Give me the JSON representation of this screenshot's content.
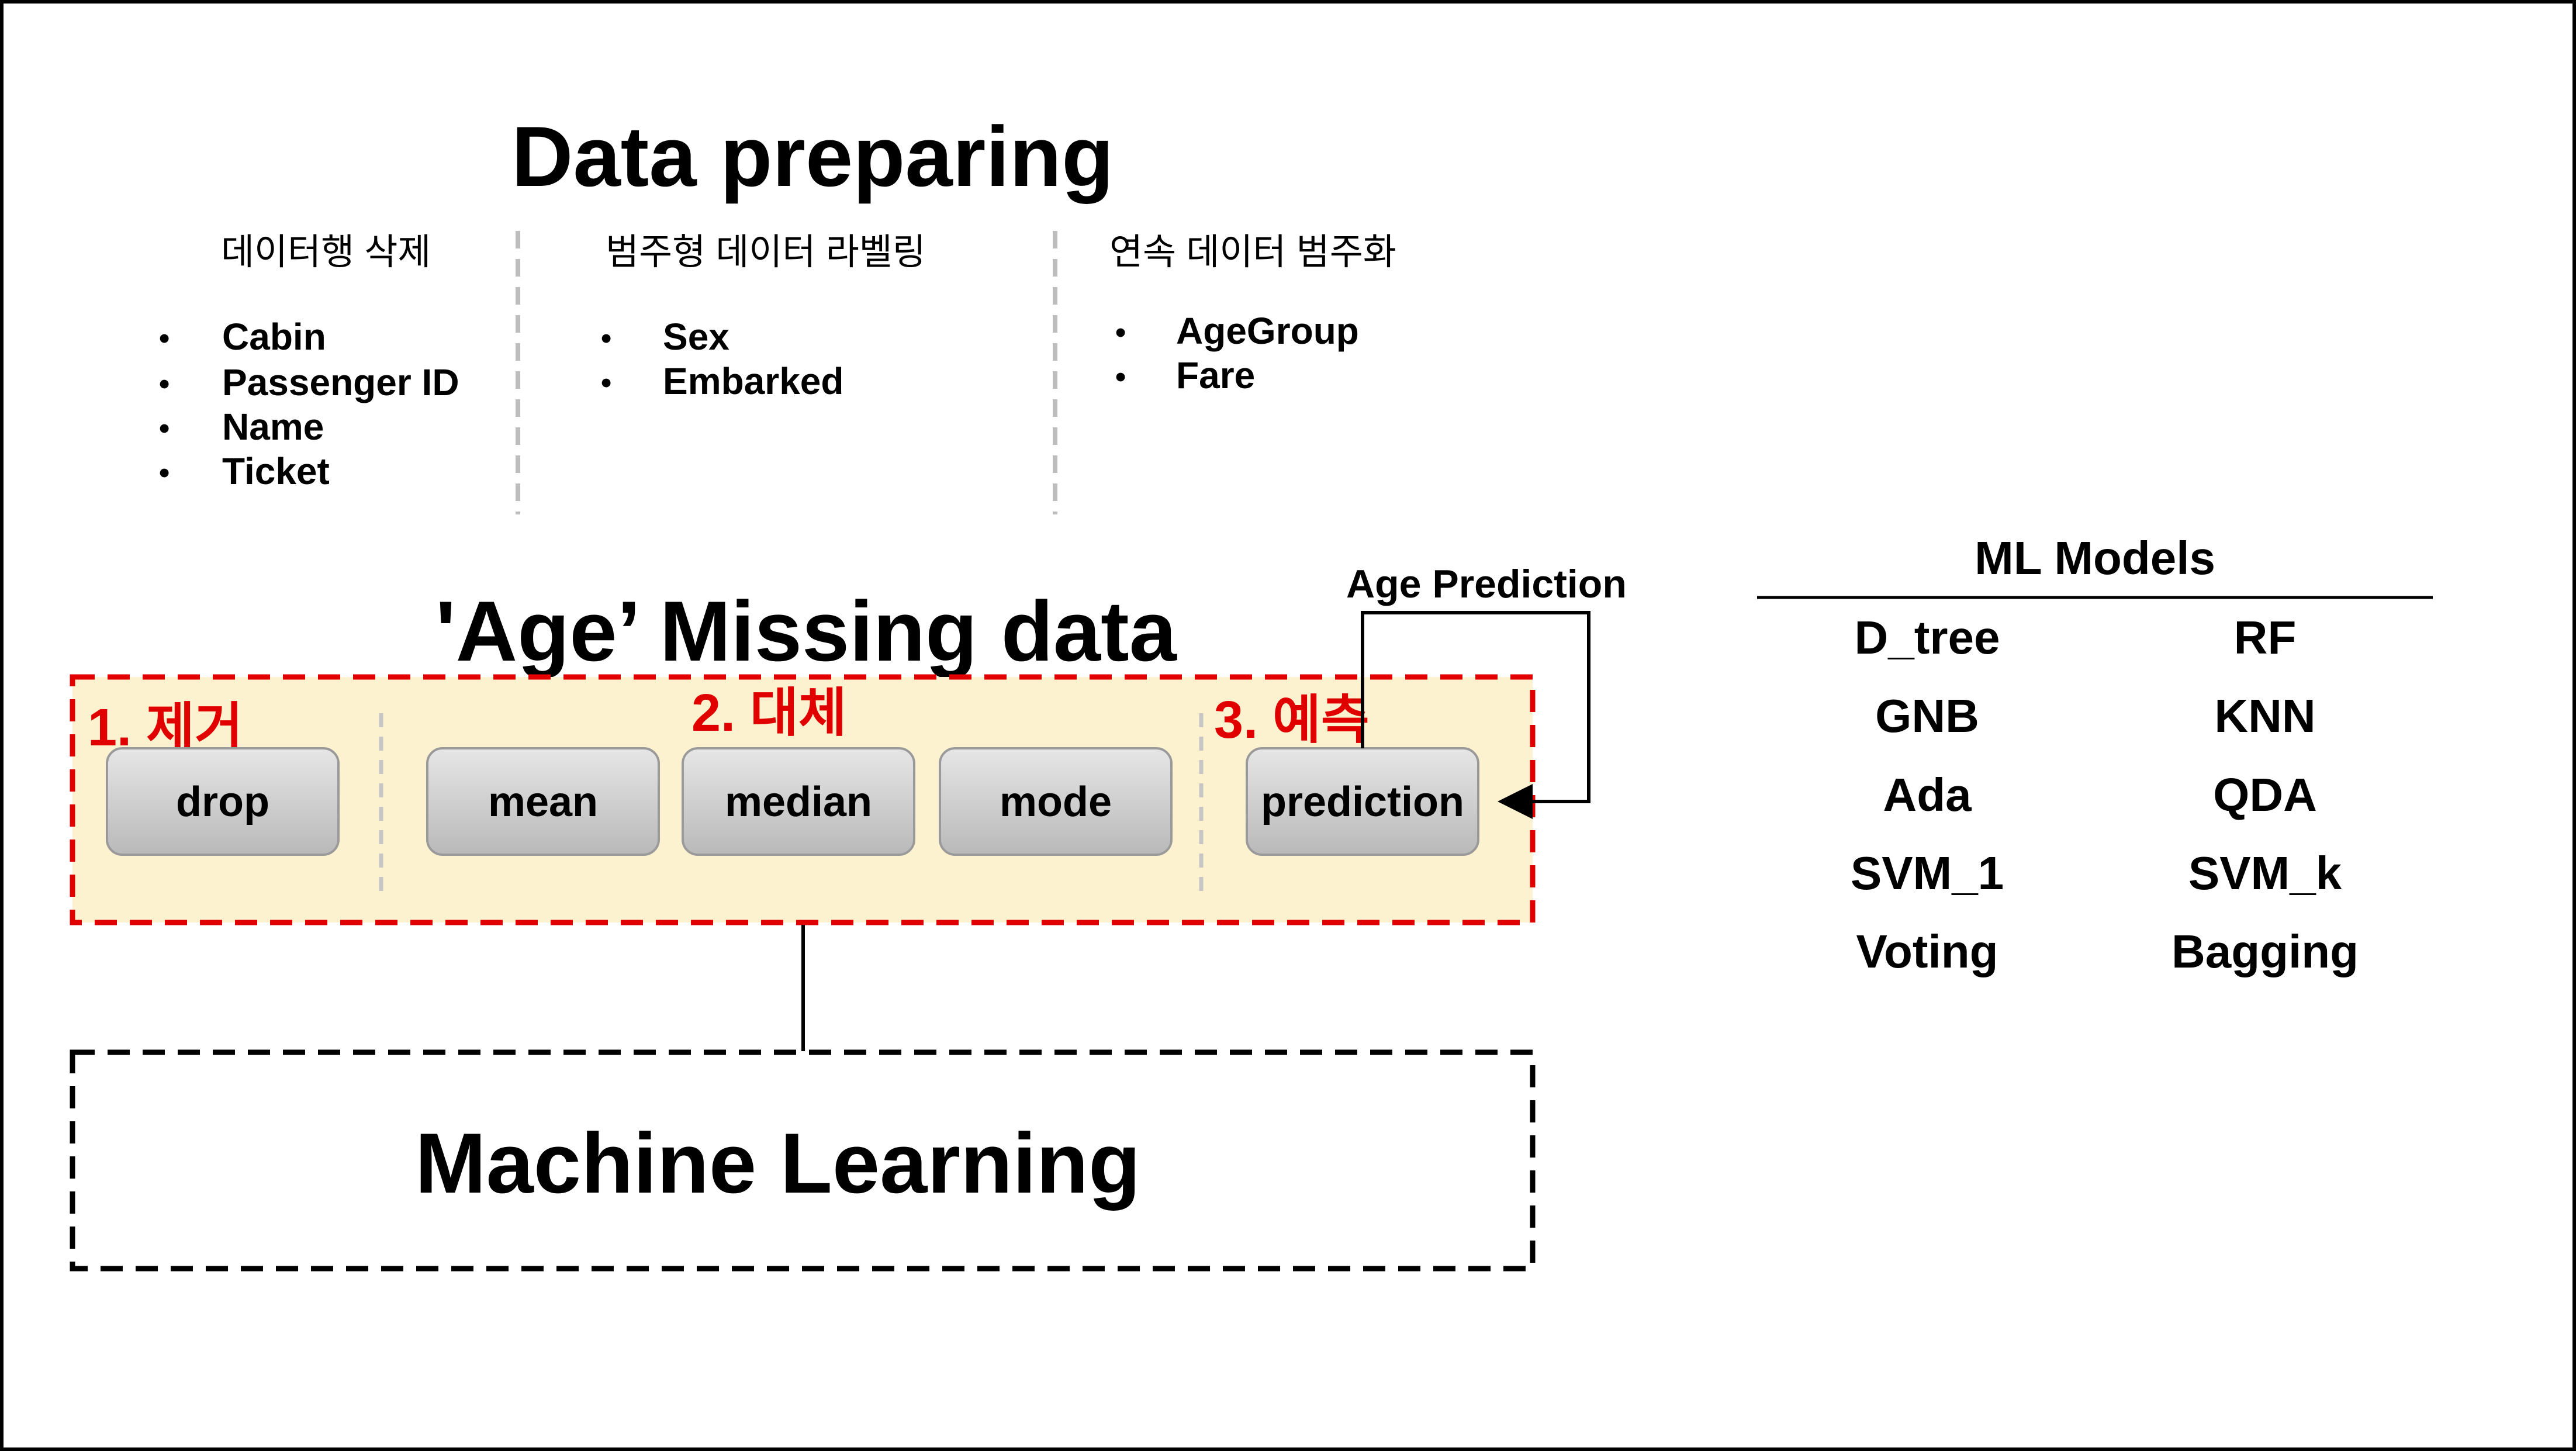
{
  "title": "Data preparing",
  "columns": [
    {
      "heading": "데이터행 삭제",
      "items": [
        "Cabin",
        "Passenger ID",
        "Name",
        "Ticket"
      ]
    },
    {
      "heading": "범주형 데이터 라벨링",
      "items": [
        "Sex",
        "Embarked"
      ]
    },
    {
      "heading": "연속 데이터 범주화",
      "items": [
        "AgeGroup",
        "Fare"
      ]
    }
  ],
  "missing": {
    "title": "'Age’ Missing data",
    "groups": {
      "remove": "1. 제거",
      "replace": "2. 대체",
      "predict": "3. 예측"
    },
    "buttons": {
      "drop": "drop",
      "mean": "mean",
      "median": "median",
      "mode": "mode",
      "prediction": "prediction"
    },
    "feedback_label": "Age Prediction"
  },
  "ml_box": {
    "label": "Machine Learning"
  },
  "models": {
    "title": "ML Models",
    "left": [
      "D_tree",
      "GNB",
      "Ada",
      "SVM_1",
      "Voting"
    ],
    "right": [
      "RF",
      "KNN",
      "QDA",
      "SVM_k",
      "Bagging"
    ]
  },
  "colors": {
    "dashed_red": "#e00000",
    "panel_fill": "#fdf2d0",
    "button_fill": "#d2d2d2"
  }
}
